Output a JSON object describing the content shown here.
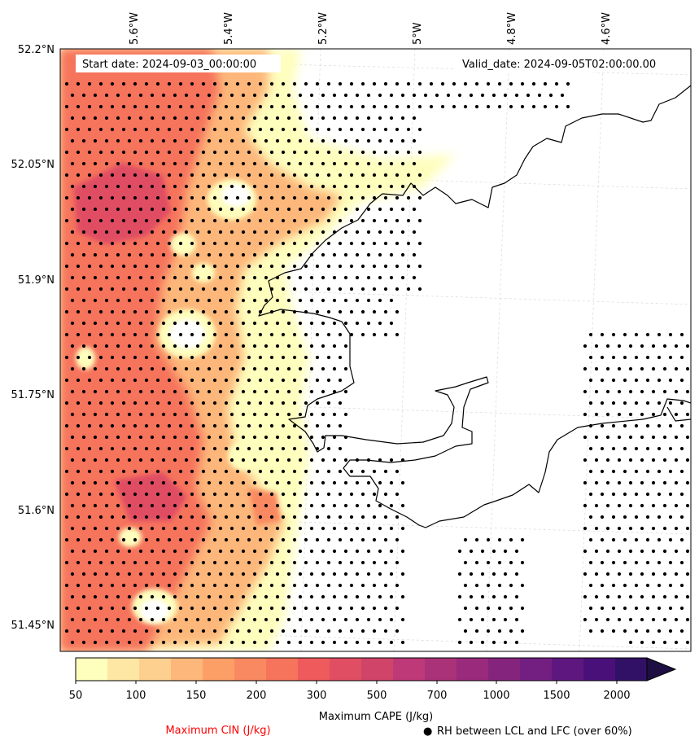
{
  "map": {
    "start_date": "Start date: 2024-09-03_00:00:00",
    "valid_date": "Valid_date: 2024-09-05T02:00:00.00",
    "lon_ticks": [
      "5.6°W",
      "5.4°W",
      "5.2°W",
      "5°W",
      "4.8°W",
      "4.6°W"
    ],
    "lat_ticks": [
      "52.2°N",
      "52.05°N",
      "51.9°N",
      "51.75°N",
      "51.6°N",
      "51.45°N"
    ],
    "extent": {
      "lon": [
        -5.75,
        -4.38
      ],
      "lat": [
        51.42,
        52.2
      ]
    }
  },
  "colorbar": {
    "title": "Maximum CAPE (J/kg)",
    "ticks": [
      "50",
      "100",
      "150",
      "200",
      "300",
      "500",
      "700",
      "1000",
      "1500",
      "2000"
    ],
    "levels": [
      50,
      75,
      100,
      125,
      150,
      175,
      200,
      250,
      300,
      400,
      500,
      600,
      700,
      850,
      1000,
      1250,
      1500,
      1750,
      2000
    ],
    "colors": [
      "#fefebd",
      "#fee6a4",
      "#fed08f",
      "#fdb77a",
      "#fc9f67",
      "#f98961",
      "#f6735c",
      "#ef5a5d",
      "#e04e63",
      "#d0446a",
      "#bd3977",
      "#aa3279",
      "#992a7c",
      "#85247d",
      "#721f81",
      "#5e177f",
      "#4a1079",
      "#311165",
      "#1e0f42"
    ],
    "extend": "max"
  },
  "legend": {
    "cin_label": "Maximum CIN (J/kg)",
    "cin_color": "#ff0000",
    "rh_label": "RH between LCL and LFC (over 60%)",
    "rh_marker": "●"
  }
}
